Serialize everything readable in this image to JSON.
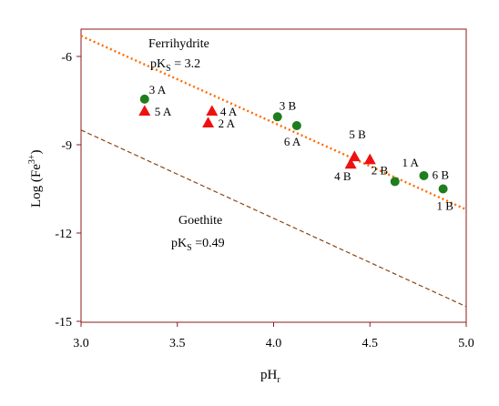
{
  "chart_data": {
    "type": "scatter",
    "xlabel_main": "pH",
    "xlabel_sub": "r",
    "ylabel_main": "Log (Fe",
    "ylabel_sup": "3+",
    "ylabel_close": ")",
    "xlim": [
      3.0,
      5.0
    ],
    "ylim": [
      -15,
      -4.8
    ],
    "xticks": [
      3.0,
      3.5,
      4.0,
      4.5,
      5.0
    ],
    "xtick_labels": [
      "3.0",
      "3.5",
      "4.0",
      "4.5",
      "5.0"
    ],
    "yticks": [
      -6,
      -9,
      -12,
      -15
    ],
    "ytick_labels": [
      "-6",
      "-9",
      "-12",
      "-15"
    ],
    "frame_color": "#8b1a1a",
    "lines": [
      {
        "id": "ferrihydrite",
        "name": "Ferrihydrite",
        "pks_text_main": "pK",
        "pks_sub": "S",
        "pks_text_value": " = 3.2",
        "x": [
          3.0,
          5.0
        ],
        "y": [
          -5.3,
          -11.2
        ],
        "color": "#ff6a00",
        "style": "dotted"
      },
      {
        "id": "goethite",
        "name": "Goethite",
        "pks_text_main": "pK",
        "pks_sub": "S",
        "pks_text_value": " =0.49",
        "x": [
          3.0,
          5.0
        ],
        "y": [
          -8.5,
          -14.5
        ],
        "color": "#8b4513",
        "style": "dashed"
      }
    ],
    "series": [
      {
        "marker": "circle",
        "color": "#1e7d1e",
        "points": [
          {
            "x": 3.33,
            "y": -7.45,
            "label": "3 A"
          },
          {
            "x": 4.02,
            "y": -8.05,
            "label": "3 B"
          },
          {
            "x": 4.12,
            "y": -8.35,
            "label": "6 A"
          },
          {
            "x": 4.63,
            "y": -10.25,
            "label": "2 B"
          },
          {
            "x": 4.78,
            "y": -10.05,
            "label": "1 A"
          },
          {
            "x": 4.88,
            "y": -10.5,
            "label": "6 B"
          }
        ]
      },
      {
        "marker": "triangle",
        "color": "#ee1111",
        "points": [
          {
            "x": 3.33,
            "y": -7.85,
            "label": "5 A"
          },
          {
            "x": 3.68,
            "y": -7.85,
            "label": "4 A"
          },
          {
            "x": 3.66,
            "y": -8.25,
            "label": "2 A"
          },
          {
            "x": 4.42,
            "y": -9.4,
            "label": "5 B"
          },
          {
            "x": 4.4,
            "y": -9.65,
            "label": "4 B"
          },
          {
            "x": 4.5,
            "y": -9.5,
            "label": ""
          }
        ],
        "extra_labels": [
          {
            "x": 4.87,
            "y": -10.75,
            "label": "1 B"
          }
        ]
      }
    ]
  }
}
